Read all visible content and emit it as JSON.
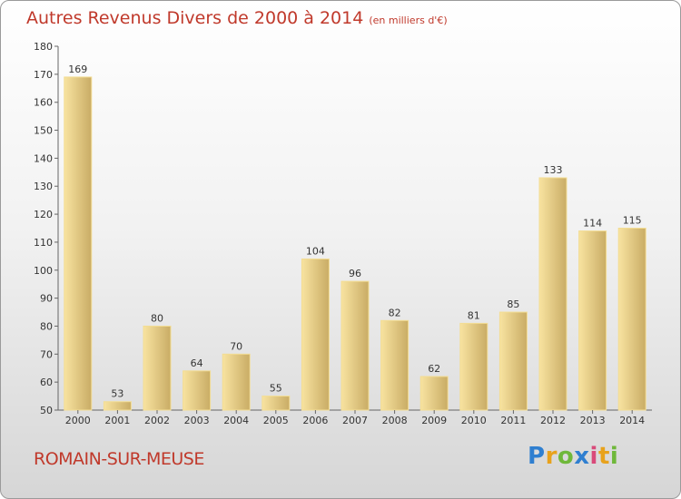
{
  "header": {
    "title": "Autres Revenus Divers de 2000 à 2014",
    "unit": "(en milliers d'€)"
  },
  "footer": {
    "town": "ROMAIN-SUR-MEUSE",
    "logo": [
      "P",
      "r",
      "o",
      "x",
      "i",
      "t",
      "i"
    ]
  },
  "colors": {
    "bar_light": "#f8e3a0",
    "bar_dark": "#c9ac65",
    "title": "#c0392b"
  },
  "chart_data": {
    "type": "bar",
    "title": "Autres Revenus Divers de 2000 à 2014",
    "xlabel": "",
    "ylabel": "",
    "categories": [
      "2000",
      "2001",
      "2002",
      "2003",
      "2004",
      "2005",
      "2006",
      "2007",
      "2008",
      "2009",
      "2010",
      "2011",
      "2012",
      "2013",
      "2014"
    ],
    "values": [
      169,
      53,
      80,
      64,
      70,
      55,
      104,
      96,
      82,
      62,
      81,
      85,
      133,
      114,
      115
    ],
    "ylim": [
      50,
      180
    ],
    "yticks": [
      50,
      60,
      70,
      80,
      90,
      100,
      110,
      120,
      130,
      140,
      150,
      160,
      170,
      180
    ],
    "grid": false
  }
}
